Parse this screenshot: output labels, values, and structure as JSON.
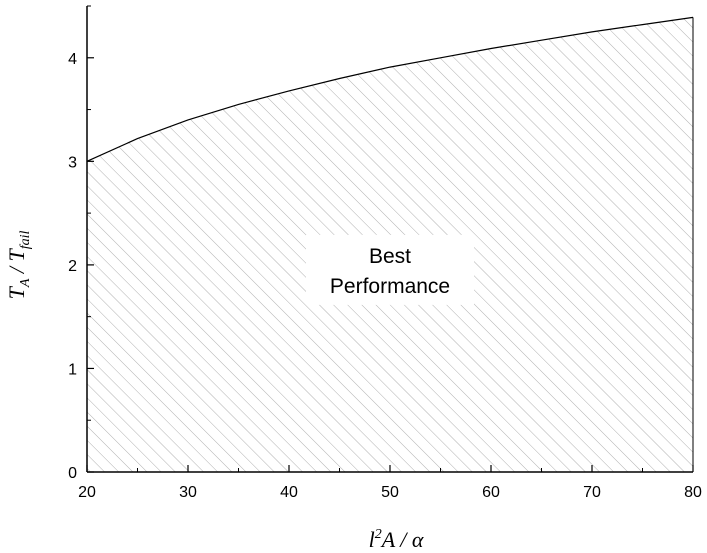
{
  "chart_data": {
    "type": "area",
    "xlim": [
      20,
      80
    ],
    "ylim": [
      0,
      4.5
    ],
    "x_ticks": [
      20,
      30,
      40,
      50,
      60,
      70,
      80
    ],
    "y_ticks": [
      0,
      1,
      2,
      3,
      4
    ],
    "x_tick_labels": [
      "20",
      "30",
      "40",
      "50",
      "60",
      "70",
      "80"
    ],
    "y_tick_labels": [
      "0",
      "1",
      "2",
      "3",
      "4"
    ],
    "xlabel": {
      "base_sup": "l",
      "sup": "2",
      "rest": "A / α"
    },
    "ylabel": {
      "t1": "T",
      "s1": "A",
      "mid": " / T",
      "s2": "fail"
    },
    "grid": false,
    "fill_pattern": "diagonal-hatch",
    "series": [
      {
        "x": [
          20,
          25,
          30,
          35,
          40,
          45,
          50,
          55,
          60,
          65,
          70,
          75,
          80
        ],
        "y": [
          3.0,
          3.22,
          3.4,
          3.55,
          3.68,
          3.8,
          3.91,
          4.0,
          4.09,
          4.17,
          4.25,
          4.32,
          4.39
        ]
      }
    ],
    "annotation": {
      "line1": "Best",
      "line2": "Performance",
      "x": 50,
      "y": 2.0
    }
  }
}
